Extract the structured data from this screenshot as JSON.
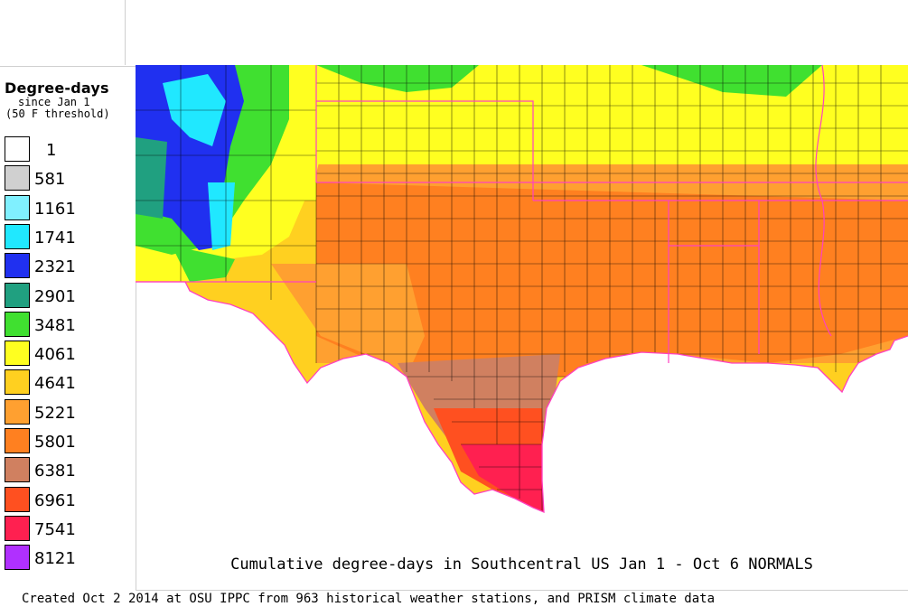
{
  "legend": {
    "title": "Degree-days",
    "subtitle_line1": "since Jan 1",
    "subtitle_line2": "(50 F threshold)",
    "items": [
      {
        "label": "1",
        "color": "#ffffff"
      },
      {
        "label": "581",
        "color": "#d0d0d0"
      },
      {
        "label": "1161",
        "color": "#80f0ff"
      },
      {
        "label": "1741",
        "color": "#20e8ff"
      },
      {
        "label": "2321",
        "color": "#2030f0"
      },
      {
        "label": "2901",
        "color": "#20a080"
      },
      {
        "label": "3481",
        "color": "#40e030"
      },
      {
        "label": "4061",
        "color": "#ffff20"
      },
      {
        "label": "4641",
        "color": "#ffd020"
      },
      {
        "label": "5221",
        "color": "#ffa030"
      },
      {
        "label": "5801",
        "color": "#ff8020"
      },
      {
        "label": "6381",
        "color": "#d08060"
      },
      {
        "label": "6961",
        "color": "#ff5020"
      },
      {
        "label": "7541",
        "color": "#ff2050"
      },
      {
        "label": "8121",
        "color": "#b030ff"
      }
    ]
  },
  "map": {
    "region": "Southcentral US",
    "state_border_color": "#ff40c0",
    "county_border_color": "#000000"
  },
  "map_title": "Cumulative degree-days in Southcentral US Jan 1 - Oct 6 NORMALS",
  "footer": "Created Oct 2 2014 at OSU IPPC from 963 historical weather stations, and PRISM climate data"
}
